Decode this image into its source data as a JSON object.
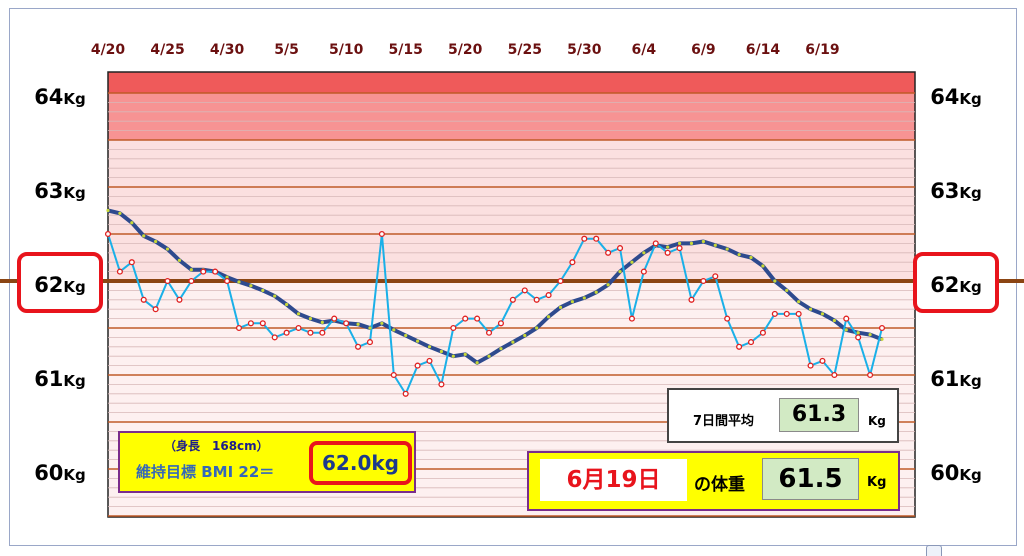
{
  "chart_data": {
    "type": "line",
    "x_labels": [
      "4/20",
      "4/25",
      "4/30",
      "5/5",
      "5/10",
      "5/15",
      "5/20",
      "5/25",
      "5/30",
      "6/4",
      "6/9",
      "6/14",
      "6/19"
    ],
    "y_unit": "Kg",
    "y_labels": [
      {
        "value": 64,
        "num": "64",
        "unit": "Kg",
        "highlight": false
      },
      {
        "value": 63,
        "num": "63",
        "unit": "Kg",
        "highlight": false
      },
      {
        "value": 62,
        "num": "62",
        "unit": "Kg",
        "highlight": true
      },
      {
        "value": 61,
        "num": "61",
        "unit": "Kg",
        "highlight": false
      },
      {
        "value": 60,
        "num": "60",
        "unit": "Kg",
        "highlight": false
      }
    ],
    "ylim": [
      59.5,
      64.2
    ],
    "target_weight": 62.0,
    "series": [
      {
        "values": [
          62.5,
          62.1,
          62.2,
          61.8,
          61.7,
          62.0,
          61.8,
          62.0,
          62.1,
          62.1,
          62.0,
          61.5,
          61.55,
          61.55,
          61.4,
          61.45,
          61.5,
          61.45,
          61.45,
          61.6,
          61.55,
          61.3,
          61.35,
          62.5,
          61.0,
          60.8,
          61.1,
          61.15,
          60.9,
          61.5,
          61.6,
          61.6,
          61.45,
          61.55,
          61.8,
          61.9,
          61.8,
          61.85,
          62.0,
          62.2,
          62.45,
          62.45,
          62.3,
          62.35,
          61.6,
          62.1,
          62.4,
          62.3,
          62.35,
          61.8,
          62.0,
          62.05,
          61.6,
          61.3,
          61.35,
          61.45,
          61.65,
          61.65,
          61.65,
          61.1,
          61.15,
          61.0,
          61.6,
          61.4,
          61.0,
          61.5
        ]
      },
      {
        "values": [
          62.75,
          62.72,
          62.62,
          62.48,
          62.42,
          62.34,
          62.22,
          62.12,
          62.12,
          62.1,
          62.04,
          61.99,
          61.95,
          61.9,
          61.84,
          61.75,
          61.65,
          61.6,
          61.56,
          61.58,
          61.55,
          61.54,
          61.5,
          61.55,
          61.48,
          61.42,
          61.36,
          61.3,
          61.25,
          61.2,
          61.22,
          61.13,
          61.2,
          61.28,
          61.35,
          61.42,
          61.5,
          61.62,
          61.72,
          61.78,
          61.82,
          61.88,
          61.96,
          62.1,
          62.2,
          62.3,
          62.38,
          62.36,
          62.4,
          62.4,
          62.42,
          62.38,
          62.34,
          62.28,
          62.25,
          62.16,
          62.0,
          61.9,
          61.78,
          61.7,
          61.65,
          61.58,
          61.48,
          61.45,
          61.43,
          61.38
        ]
      }
    ],
    "colors": {
      "daily": "#1ab0e8",
      "daily_marker": "#e02020",
      "average": "#2e4a8e",
      "average_marker": "#c8d838",
      "target_line": "#8b4513",
      "grid_major": "#c05a28",
      "grid_minor": "#d8b8b8",
      "band_top": "#ef5a5a",
      "band_top_fill": "#f79393",
      "band_mid": "#fbe0e0",
      "band_low": "#fdf0f0"
    }
  },
  "bmi_box": {
    "height_note": "（身長　168cm）",
    "label": "維持目標 BMI 22＝",
    "target": "62.0kg"
  },
  "avg_box": {
    "label": "7日間平均",
    "value": "61.3",
    "unit": "Kg"
  },
  "today_box": {
    "date": "6月19日",
    "label": "の体重",
    "value": "61.5",
    "unit": "Kg"
  }
}
